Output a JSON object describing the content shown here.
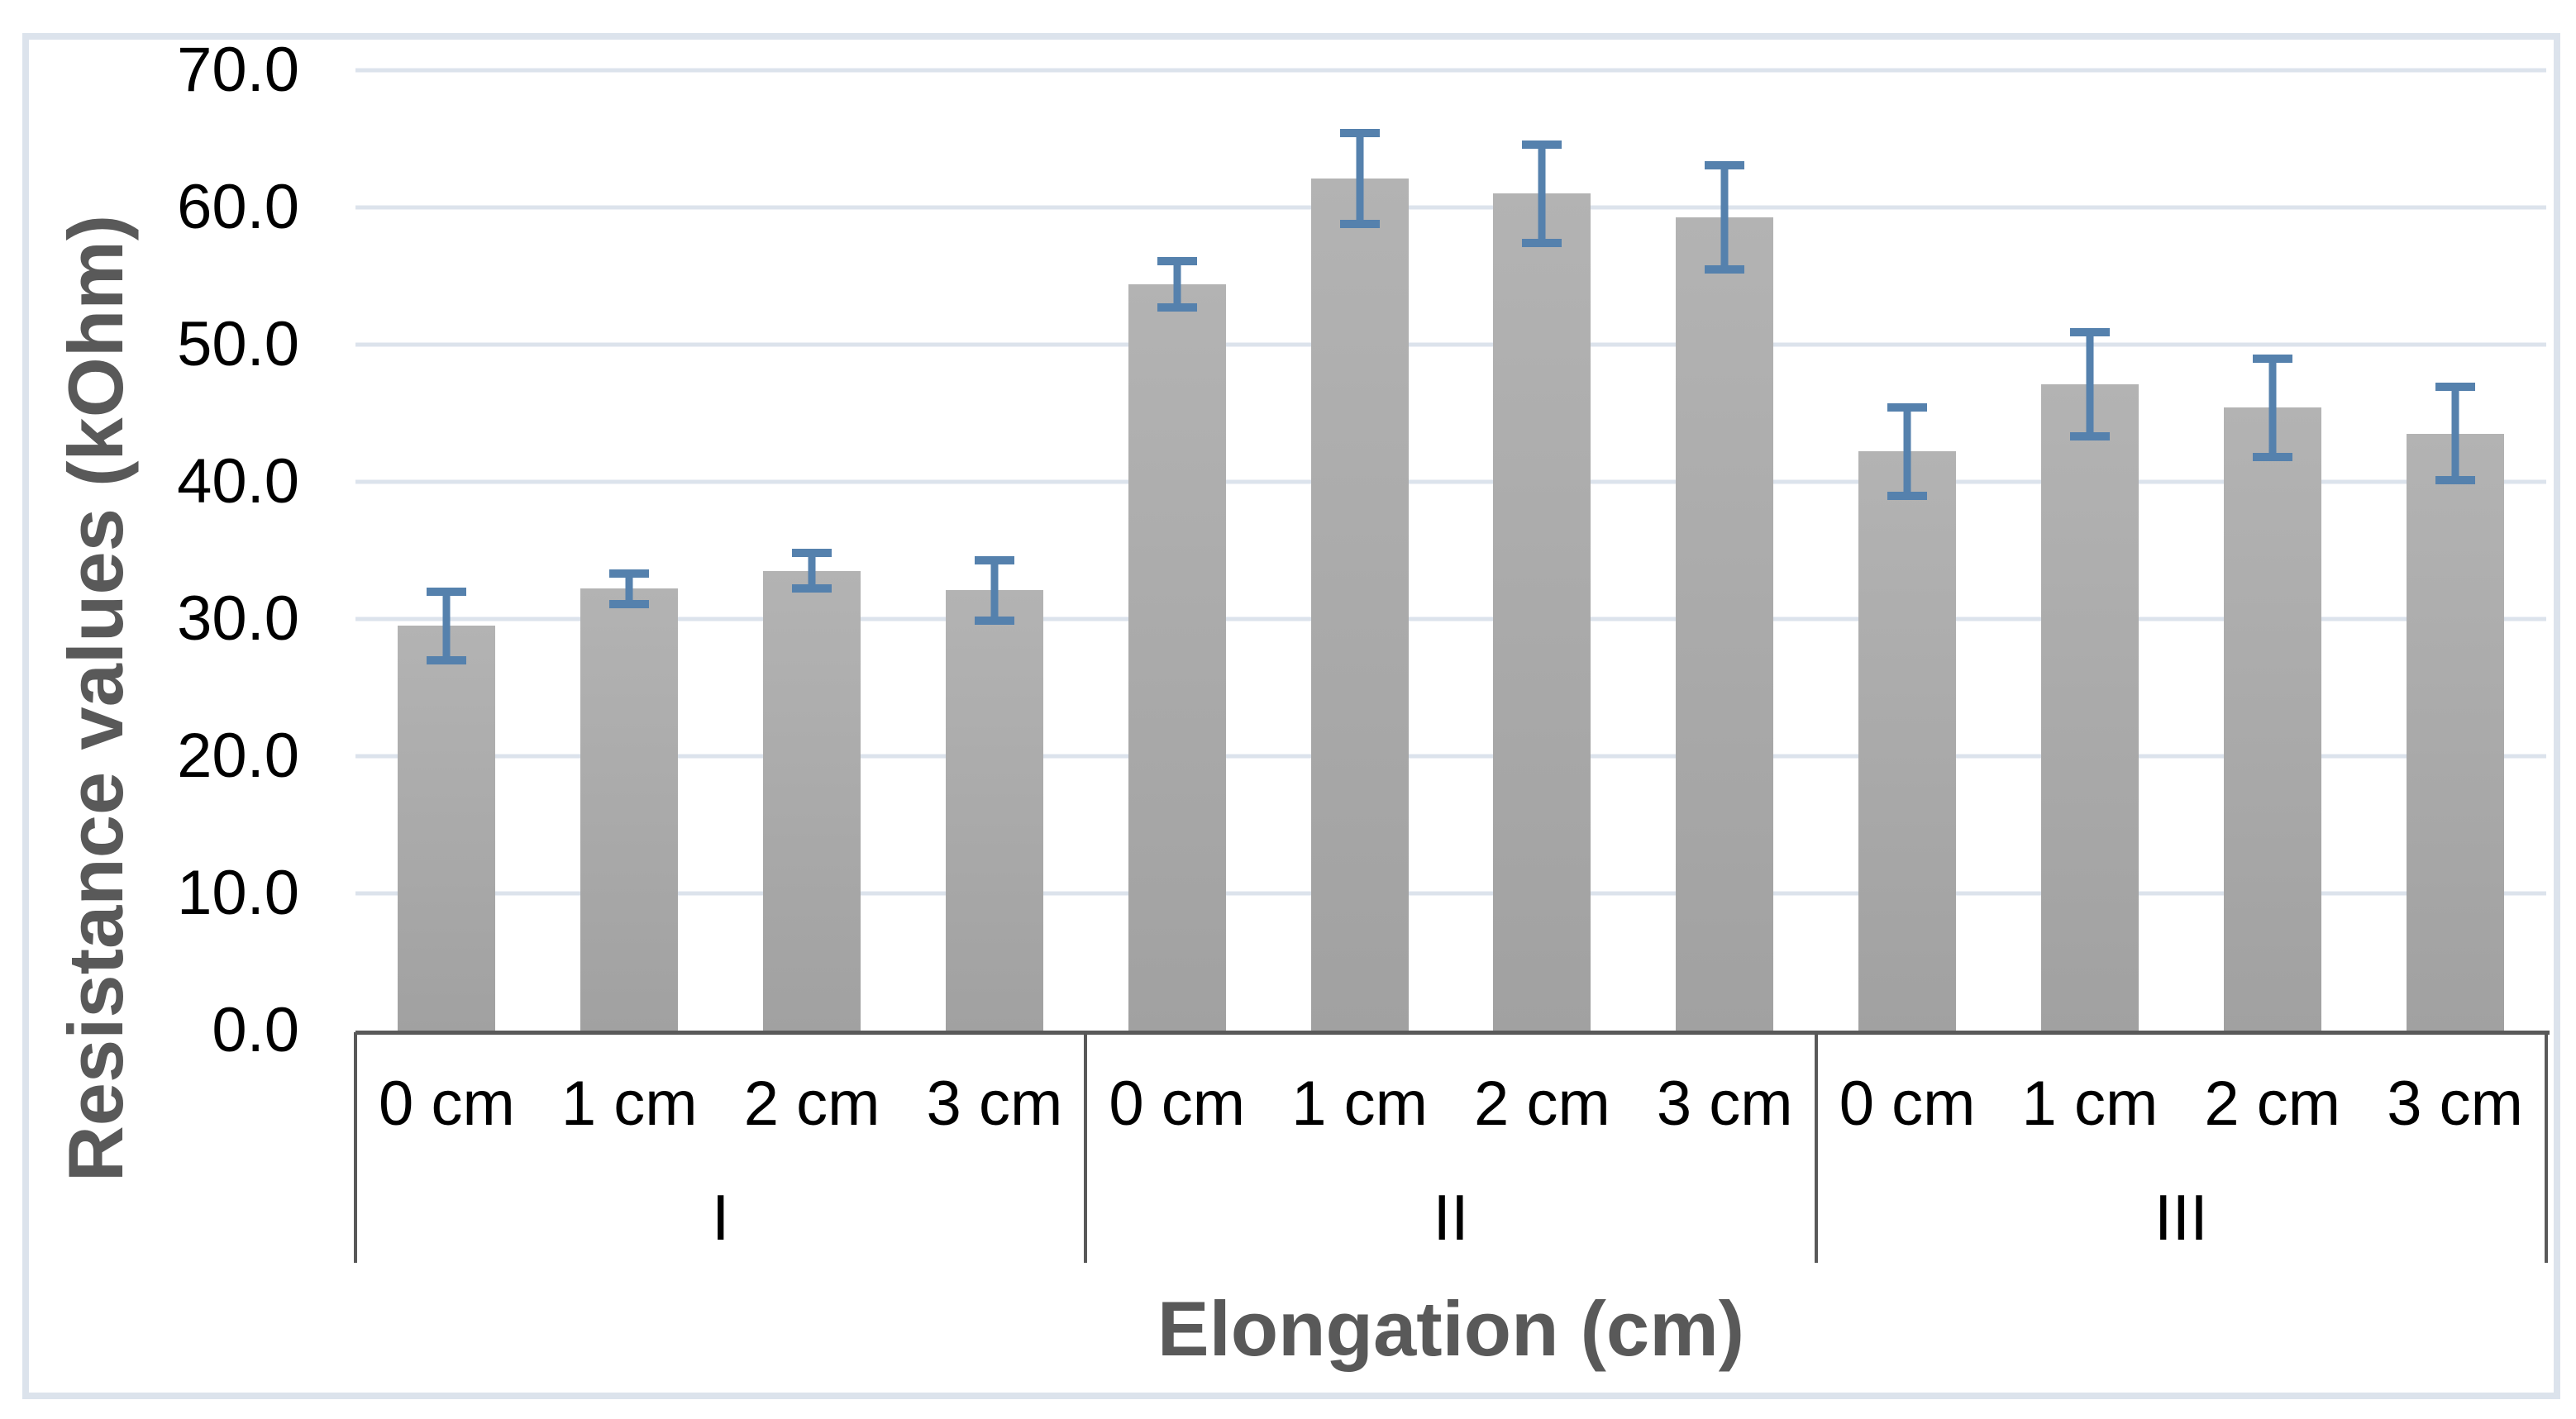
{
  "chart_data": {
    "type": "bar",
    "title": "",
    "xlabel": "Elongation (cm)",
    "ylabel": "Resistance values (kOhm)",
    "ylim": [
      0,
      70
    ],
    "grid": true,
    "legend": null,
    "ytick_values": [
      0,
      10,
      20,
      30,
      40,
      50,
      60,
      70
    ],
    "ytick_labels": [
      "0.0",
      "10.0",
      "20.0",
      "30.0",
      "40.0",
      "50.0",
      "60.0",
      "70.0"
    ],
    "groups": [
      {
        "label": "I",
        "categories": [
          "0 cm",
          "1 cm",
          "2 cm",
          "3 cm"
        ],
        "values": [
          29.5,
          32.2,
          33.5,
          32.1
        ],
        "errors": [
          2.5,
          1.1,
          1.3,
          2.2
        ]
      },
      {
        "label": "II",
        "categories": [
          "0 cm",
          "1 cm",
          "2 cm",
          "3 cm"
        ],
        "values": [
          54.4,
          62.1,
          61.0,
          59.3
        ],
        "errors": [
          1.7,
          3.3,
          3.6,
          3.8
        ]
      },
      {
        "label": "III",
        "categories": [
          "0 cm",
          "1 cm",
          "2 cm",
          "3 cm"
        ],
        "values": [
          42.2,
          47.1,
          45.4,
          43.5
        ],
        "errors": [
          3.2,
          3.8,
          3.6,
          3.4
        ]
      }
    ],
    "colors": {
      "bar_top": "#b3b3b3",
      "bar_bottom": "#a1a1a1",
      "error_bar": "#5581ad",
      "gridline": "#dce3ec",
      "axis_line": "#595959",
      "divider": "#595959",
      "tick_text": "#000000",
      "title_text": "#595959",
      "frame": "#dce3ec",
      "background": "#ffffff"
    }
  }
}
